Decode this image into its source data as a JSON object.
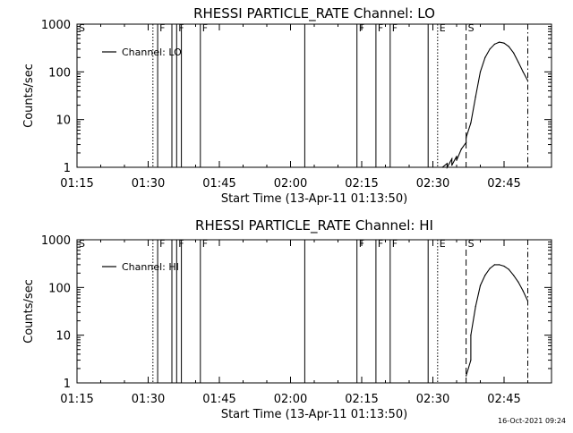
{
  "footer": {
    "timestamp": "16-Oct-2021 09:24"
  },
  "chart_data": [
    {
      "type": "line",
      "title": "RHESSI PARTICLE_RATE Channel: LO",
      "xlabel": "Start Time (13-Apr-11 01:13:50)",
      "ylabel": "Counts/sec",
      "y_scale": "log",
      "ylim": [
        1,
        1000
      ],
      "xlim_minutes_after_0115": [
        0,
        100
      ],
      "x_tick_labels": [
        "01:15",
        "01:30",
        "01:45",
        "02:00",
        "02:15",
        "02:30",
        "02:45"
      ],
      "y_tick_labels": [
        "1",
        "10",
        "100",
        "1000"
      ],
      "legend": {
        "position": "top-left",
        "entries": [
          "Channel: LO"
        ]
      },
      "series": [
        {
          "name": "Channel: LO",
          "x_time": [
            "02:32",
            "02:33",
            "02:33",
            "02:34",
            "02:34",
            "02:35",
            "02:35",
            "02:36",
            "02:37",
            "02:37",
            "02:38",
            "02:39",
            "02:40",
            "02:41",
            "02:42",
            "02:43",
            "02:44",
            "02:45",
            "02:46",
            "02:47",
            "02:48",
            "02:49",
            "02:50"
          ],
          "values": [
            1,
            1.2,
            1,
            1.5,
            1.1,
            1.7,
            1.4,
            2.4,
            3.3,
            4.2,
            8.5,
            30,
            100,
            200,
            300,
            380,
            420,
            400,
            340,
            250,
            160,
            100,
            65
          ]
        }
      ],
      "events": [
        {
          "time": "01:15",
          "style": "dashed",
          "label": "S"
        },
        {
          "time": "01:31",
          "style": "dotted",
          "label": ""
        },
        {
          "time": "01:32",
          "style": "solid",
          "label": "F"
        },
        {
          "time": "01:35",
          "style": "solid",
          "label": ""
        },
        {
          "time": "01:36",
          "style": "solid",
          "label": "F"
        },
        {
          "time": "01:37",
          "style": "solid",
          "label": ""
        },
        {
          "time": "01:41",
          "style": "solid",
          "label": "F"
        },
        {
          "time": "02:03",
          "style": "solid",
          "label": ""
        },
        {
          "time": "02:14",
          "style": "solid",
          "label": "F"
        },
        {
          "time": "02:18",
          "style": "solid",
          "label": "F"
        },
        {
          "time": "02:21",
          "style": "solid",
          "label": "F"
        },
        {
          "time": "02:29",
          "style": "solid",
          "label": ""
        },
        {
          "time": "02:31",
          "style": "dotted",
          "label": "E"
        },
        {
          "time": "02:37",
          "style": "dashed",
          "label": "S"
        },
        {
          "time": "02:50",
          "style": "dashdot",
          "label": ""
        }
      ]
    },
    {
      "type": "line",
      "title": "RHESSI PARTICLE_RATE Channel: HI",
      "xlabel": "Start Time (13-Apr-11 01:13:50)",
      "ylabel": "Counts/sec",
      "y_scale": "log",
      "ylim": [
        1,
        1000
      ],
      "xlim_minutes_after_0115": [
        0,
        100
      ],
      "x_tick_labels": [
        "01:15",
        "01:30",
        "01:45",
        "02:00",
        "02:15",
        "02:30",
        "02:45"
      ],
      "y_tick_labels": [
        "1",
        "10",
        "100",
        "1000"
      ],
      "legend": {
        "position": "top-left",
        "entries": [
          "Channel: HI"
        ]
      },
      "series": [
        {
          "name": "Channel: HI",
          "x_time": [
            "02:37",
            "02:38",
            "02:38",
            "02:39",
            "02:40",
            "02:41",
            "02:42",
            "02:43",
            "02:44",
            "02:45",
            "02:46",
            "02:47",
            "02:48",
            "02:49",
            "02:50"
          ],
          "values": [
            1.4,
            3,
            10,
            40,
            110,
            180,
            250,
            300,
            300,
            280,
            240,
            180,
            130,
            85,
            52
          ]
        }
      ],
      "events": [
        {
          "time": "01:15",
          "style": "dashed",
          "label": "S"
        },
        {
          "time": "01:31",
          "style": "dotted",
          "label": ""
        },
        {
          "time": "01:32",
          "style": "solid",
          "label": "F"
        },
        {
          "time": "01:35",
          "style": "solid",
          "label": ""
        },
        {
          "time": "01:36",
          "style": "solid",
          "label": "F"
        },
        {
          "time": "01:37",
          "style": "solid",
          "label": ""
        },
        {
          "time": "01:41",
          "style": "solid",
          "label": "F"
        },
        {
          "time": "02:03",
          "style": "solid",
          "label": ""
        },
        {
          "time": "02:14",
          "style": "solid",
          "label": "F"
        },
        {
          "time": "02:18",
          "style": "solid",
          "label": "F"
        },
        {
          "time": "02:21",
          "style": "solid",
          "label": "F"
        },
        {
          "time": "02:29",
          "style": "solid",
          "label": ""
        },
        {
          "time": "02:31",
          "style": "dotted",
          "label": "E"
        },
        {
          "time": "02:37",
          "style": "dashed",
          "label": "S"
        },
        {
          "time": "02:50",
          "style": "dashdot",
          "label": ""
        }
      ]
    }
  ]
}
